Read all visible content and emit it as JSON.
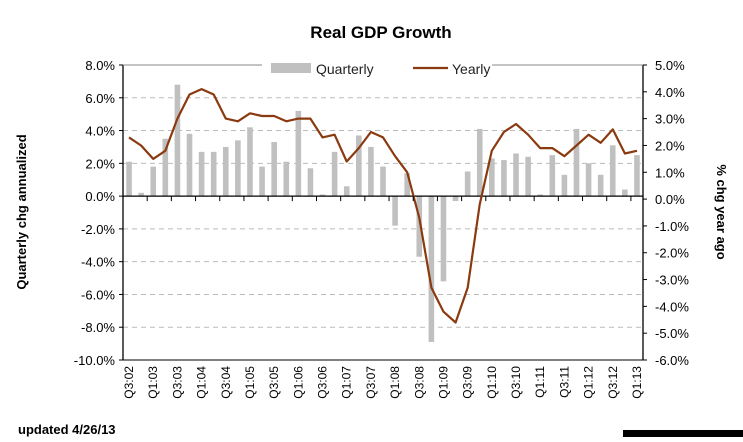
{
  "chart_data": {
    "type": "bar+line",
    "title": "Real GDP Growth",
    "ylabel_left": "Quarterly chg annualized",
    "ylabel_right": "% chg year ago",
    "ylim_left": [
      -10,
      8
    ],
    "ylim_right": [
      -6,
      5
    ],
    "grid": "horizontal dashed",
    "legend_position": "top",
    "left_ticks": [
      "8.0%",
      "6.0%",
      "4.0%",
      "2.0%",
      "0.0%",
      "-2.0%",
      "-4.0%",
      "-6.0%",
      "-8.0%",
      "-10.0%"
    ],
    "right_ticks": [
      "5.0%",
      "4.0%",
      "3.0%",
      "2.0%",
      "1.0%",
      "0.0%",
      "-1.0%",
      "-2.0%",
      "-3.0%",
      "-4.0%",
      "-5.0%",
      "-6.0%"
    ],
    "x_tick_labels": [
      "Q3:02",
      "Q1:03",
      "Q3:03",
      "Q1:04",
      "Q3:04",
      "Q1:05",
      "Q3:05",
      "Q1:06",
      "Q3:06",
      "Q1:07",
      "Q3:07",
      "Q1:08",
      "Q3:08",
      "Q1:09",
      "Q3:09",
      "Q1:10",
      "Q3:10",
      "Q1:11",
      "Q3:11",
      "Q1:12",
      "Q3:12",
      "Q1:13"
    ],
    "categories": [
      "Q3:02",
      "Q4:02",
      "Q1:03",
      "Q2:03",
      "Q3:03",
      "Q4:03",
      "Q1:04",
      "Q2:04",
      "Q3:04",
      "Q4:04",
      "Q1:05",
      "Q2:05",
      "Q3:05",
      "Q4:05",
      "Q1:06",
      "Q2:06",
      "Q3:06",
      "Q4:06",
      "Q1:07",
      "Q2:07",
      "Q3:07",
      "Q4:07",
      "Q1:08",
      "Q2:08",
      "Q3:08",
      "Q4:08",
      "Q1:09",
      "Q2:09",
      "Q3:09",
      "Q4:09",
      "Q1:10",
      "Q2:10",
      "Q3:10",
      "Q4:10",
      "Q1:11",
      "Q2:11",
      "Q3:11",
      "Q4:11",
      "Q1:12",
      "Q2:12",
      "Q3:12",
      "Q4:12",
      "Q1:13"
    ],
    "series": [
      {
        "name": "Quarterly",
        "type": "bar",
        "axis": "left",
        "color": "#c0c0c0",
        "values": [
          2.1,
          0.2,
          1.8,
          3.5,
          6.8,
          3.8,
          2.7,
          2.7,
          3.0,
          3.4,
          4.2,
          1.8,
          3.3,
          2.1,
          5.2,
          1.7,
          0.1,
          2.7,
          0.6,
          3.7,
          3.0,
          1.8,
          -1.8,
          1.4,
          -3.7,
          -8.9,
          -5.2,
          -0.3,
          1.5,
          4.1,
          2.3,
          2.2,
          2.6,
          2.4,
          0.1,
          2.5,
          1.3,
          4.1,
          2.0,
          1.3,
          3.1,
          0.4,
          2.5
        ]
      },
      {
        "name": "Yearly",
        "type": "line",
        "axis": "right",
        "color": "#8b3a10",
        "values": [
          2.3,
          2.0,
          1.5,
          1.8,
          3.0,
          3.9,
          4.1,
          3.9,
          3.0,
          2.9,
          3.2,
          3.1,
          3.1,
          2.9,
          3.0,
          3.0,
          2.3,
          2.4,
          1.4,
          1.9,
          2.5,
          2.3,
          1.6,
          1.0,
          -0.7,
          -3.3,
          -4.2,
          -4.6,
          -3.3,
          -0.2,
          1.8,
          2.5,
          2.8,
          2.4,
          1.9,
          1.9,
          1.6,
          2.0,
          2.4,
          2.1,
          2.6,
          1.7,
          1.8
        ]
      }
    ]
  },
  "footer": {
    "updated": "updated 4/26/13"
  }
}
